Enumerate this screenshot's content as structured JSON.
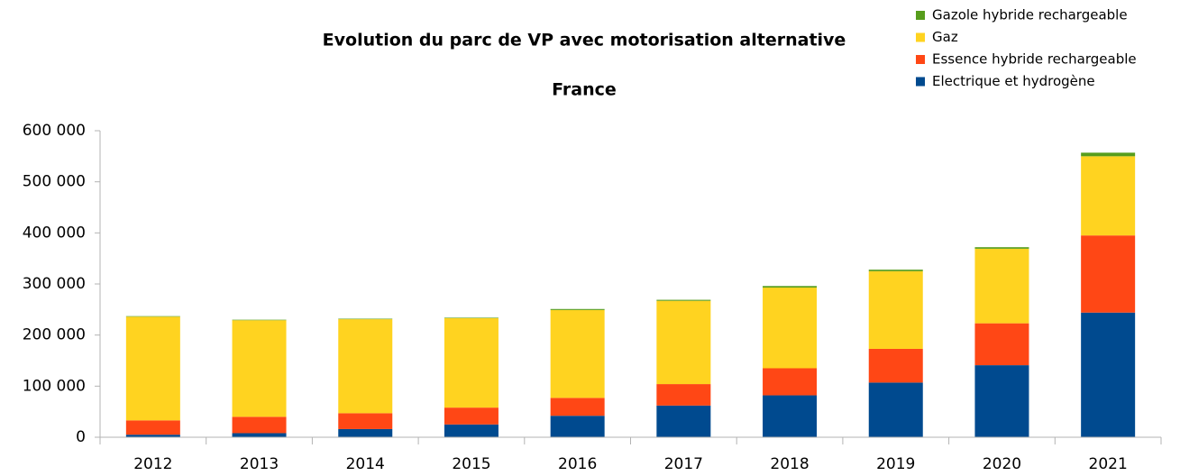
{
  "chart_data": {
    "type": "stacked_bar",
    "title": "Evolution du parc de VP avec motorisation alternative",
    "subtitle": "France",
    "categories": [
      "2012",
      "2013",
      "2014",
      "2015",
      "2016",
      "2017",
      "2018",
      "2019",
      "2020",
      "2021"
    ],
    "series": [
      {
        "name": "Electrique et hydrogène",
        "color": "#004a8f",
        "values": [
          5000,
          8000,
          16000,
          25000,
          42000,
          62000,
          82000,
          107000,
          141000,
          244000
        ]
      },
      {
        "name": "Essence hybride rechargeable",
        "color": "#ff4715",
        "values": [
          28000,
          32000,
          31000,
          33000,
          35000,
          42000,
          53000,
          66000,
          82000,
          151000
        ]
      },
      {
        "name": "Gaz",
        "color": "#ffd320",
        "values": [
          203000,
          189000,
          184000,
          175000,
          172000,
          163000,
          158000,
          152000,
          146000,
          155000
        ]
      },
      {
        "name": "Gazole hybride rechargeable",
        "color": "#579d1c",
        "values": [
          1000,
          1000,
          1000,
          1000,
          2000,
          2000,
          3000,
          3000,
          3000,
          7000
        ]
      }
    ],
    "ylim": [
      0,
      600000
    ],
    "yticks": [
      0,
      {
        "value": 100000,
        "label": "100 000"
      },
      {
        "value": 200000,
        "label": "200 000"
      },
      {
        "value": 300000,
        "label": "300 000"
      },
      {
        "value": 400000,
        "label": "400 000"
      },
      {
        "value": 500000,
        "label": "500 000"
      },
      {
        "value": 600000,
        "label": "600 000"
      }
    ],
    "grid": false,
    "legend": "top-right"
  }
}
